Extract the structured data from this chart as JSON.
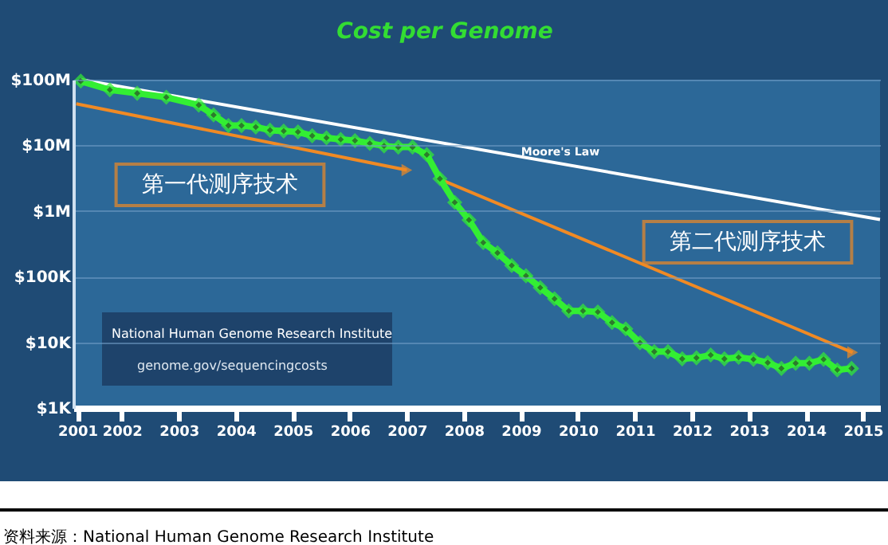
{
  "chart_data": {
    "type": "line",
    "title": "Cost per Genome",
    "log": "y",
    "grid": "y",
    "marker": "diamond",
    "xlim": [
      2001.15,
      2015.3
    ],
    "xticks": [
      {
        "value": 2001.22,
        "label": "2001"
      },
      {
        "value": 2002,
        "label": "2002"
      },
      {
        "value": 2003,
        "label": "2003"
      },
      {
        "value": 2004,
        "label": "2004"
      },
      {
        "value": 2005,
        "label": "2005"
      },
      {
        "value": 2006,
        "label": "2006"
      },
      {
        "value": 2007,
        "label": "2007"
      },
      {
        "value": 2008,
        "label": "2008"
      },
      {
        "value": 2009,
        "label": "2009"
      },
      {
        "value": 2010,
        "label": "2010"
      },
      {
        "value": 2011,
        "label": "2011"
      },
      {
        "value": 2012,
        "label": "2012"
      },
      {
        "value": 2013,
        "label": "2013"
      },
      {
        "value": 2014,
        "label": "2014"
      },
      {
        "value": 2015,
        "label": "2015"
      }
    ],
    "ylim": [
      1000,
      100000000
    ],
    "yticks": [
      {
        "value": 1000,
        "label": "$1K"
      },
      {
        "value": 10000,
        "label": "$10K"
      },
      {
        "value": 100000,
        "label": "$100K"
      },
      {
        "value": 1000000,
        "label": "$1M"
      },
      {
        "value": 10000000,
        "label": "$10M"
      },
      {
        "value": 100000000,
        "label": "$100M"
      }
    ],
    "series": [
      {
        "name": "Moore's Law",
        "color": "#ffffff",
        "marker": "none",
        "x": [
          2001.28,
          2015.3
        ],
        "values": [
          100000000,
          740000
        ]
      },
      {
        "color": "#f08a24",
        "marker": "triangle",
        "x": [
          2001.2,
          2007.0
        ],
        "values": [
          43000000,
          4200000
        ]
      },
      {
        "color": "#f08a24",
        "marker": "triangle",
        "x": [
          2007.56,
          2014.82
        ],
        "values": [
          3100000,
          7000
        ]
      },
      {
        "color": "#33ee33",
        "x": [
          2001.28,
          2001.79,
          2002.27,
          2002.78,
          2003.35,
          2003.61,
          2003.87,
          2004.1,
          2004.35,
          2004.6,
          2004.84,
          2005.09,
          2005.34,
          2005.59,
          2005.84,
          2006.09,
          2006.35,
          2006.6,
          2006.85,
          2007.1,
          2007.35,
          2007.58,
          2007.84,
          2008.09,
          2008.34,
          2008.59,
          2008.84,
          2009.09,
          2009.34,
          2009.59,
          2009.84,
          2010.09,
          2010.35,
          2010.6,
          2010.84,
          2011.09,
          2011.34,
          2011.58,
          2011.83,
          2012.08,
          2012.33,
          2012.57,
          2012.82,
          2013.08,
          2013.33,
          2013.57,
          2013.82,
          2014.06,
          2014.31,
          2014.55,
          2014.8
        ],
        "values": [
          95000000,
          70000000,
          62000000,
          54000000,
          41000000,
          29000000,
          20000000,
          20000000,
          19000000,
          17000000,
          16500000,
          16000000,
          14000000,
          13000000,
          12300000,
          11800000,
          10700000,
          9800000,
          9400000,
          9400000,
          7200000,
          3100000,
          1350000,
          730000,
          330000,
          230000,
          148000,
          103000,
          68000,
          46000,
          30000,
          30000,
          29000,
          20000,
          16000,
          9800,
          7200,
          7200,
          5600,
          5800,
          6400,
          5600,
          5900,
          5500,
          4900,
          4000,
          4800,
          4800,
          5500,
          3800,
          4000
        ]
      }
    ],
    "annotations": [
      "第一代测序技术",
      "第二代测序技术",
      "National Human Genome Research Institute",
      "genome.gov/sequencingcosts",
      "资料来源：National Human Genome Research Institute"
    ]
  }
}
